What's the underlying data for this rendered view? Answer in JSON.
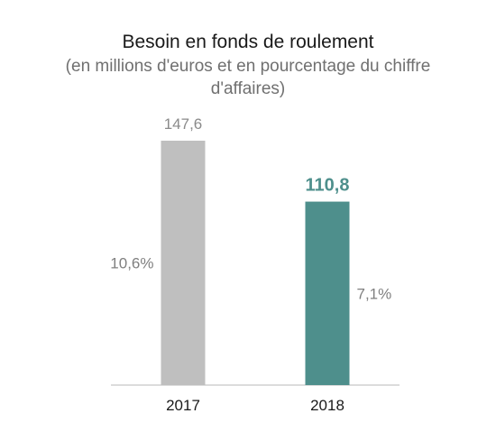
{
  "chart_data": {
    "type": "bar",
    "title": "Besoin en fonds de roulement",
    "subtitle": "(en millions d'euros et en pourcentage du chiffre d'affaires)",
    "categories": [
      "2017",
      "2018"
    ],
    "values": [
      147.6,
      110.8
    ],
    "value_labels": [
      "147,6",
      "110,8"
    ],
    "percent_labels": [
      "10,6%",
      "7,1%"
    ],
    "colors": [
      "#bfbfbf",
      "#4e8f8c"
    ],
    "highlight_index": 1,
    "ylim": [
      0,
      147.6
    ],
    "grid": false,
    "legend": "none"
  }
}
